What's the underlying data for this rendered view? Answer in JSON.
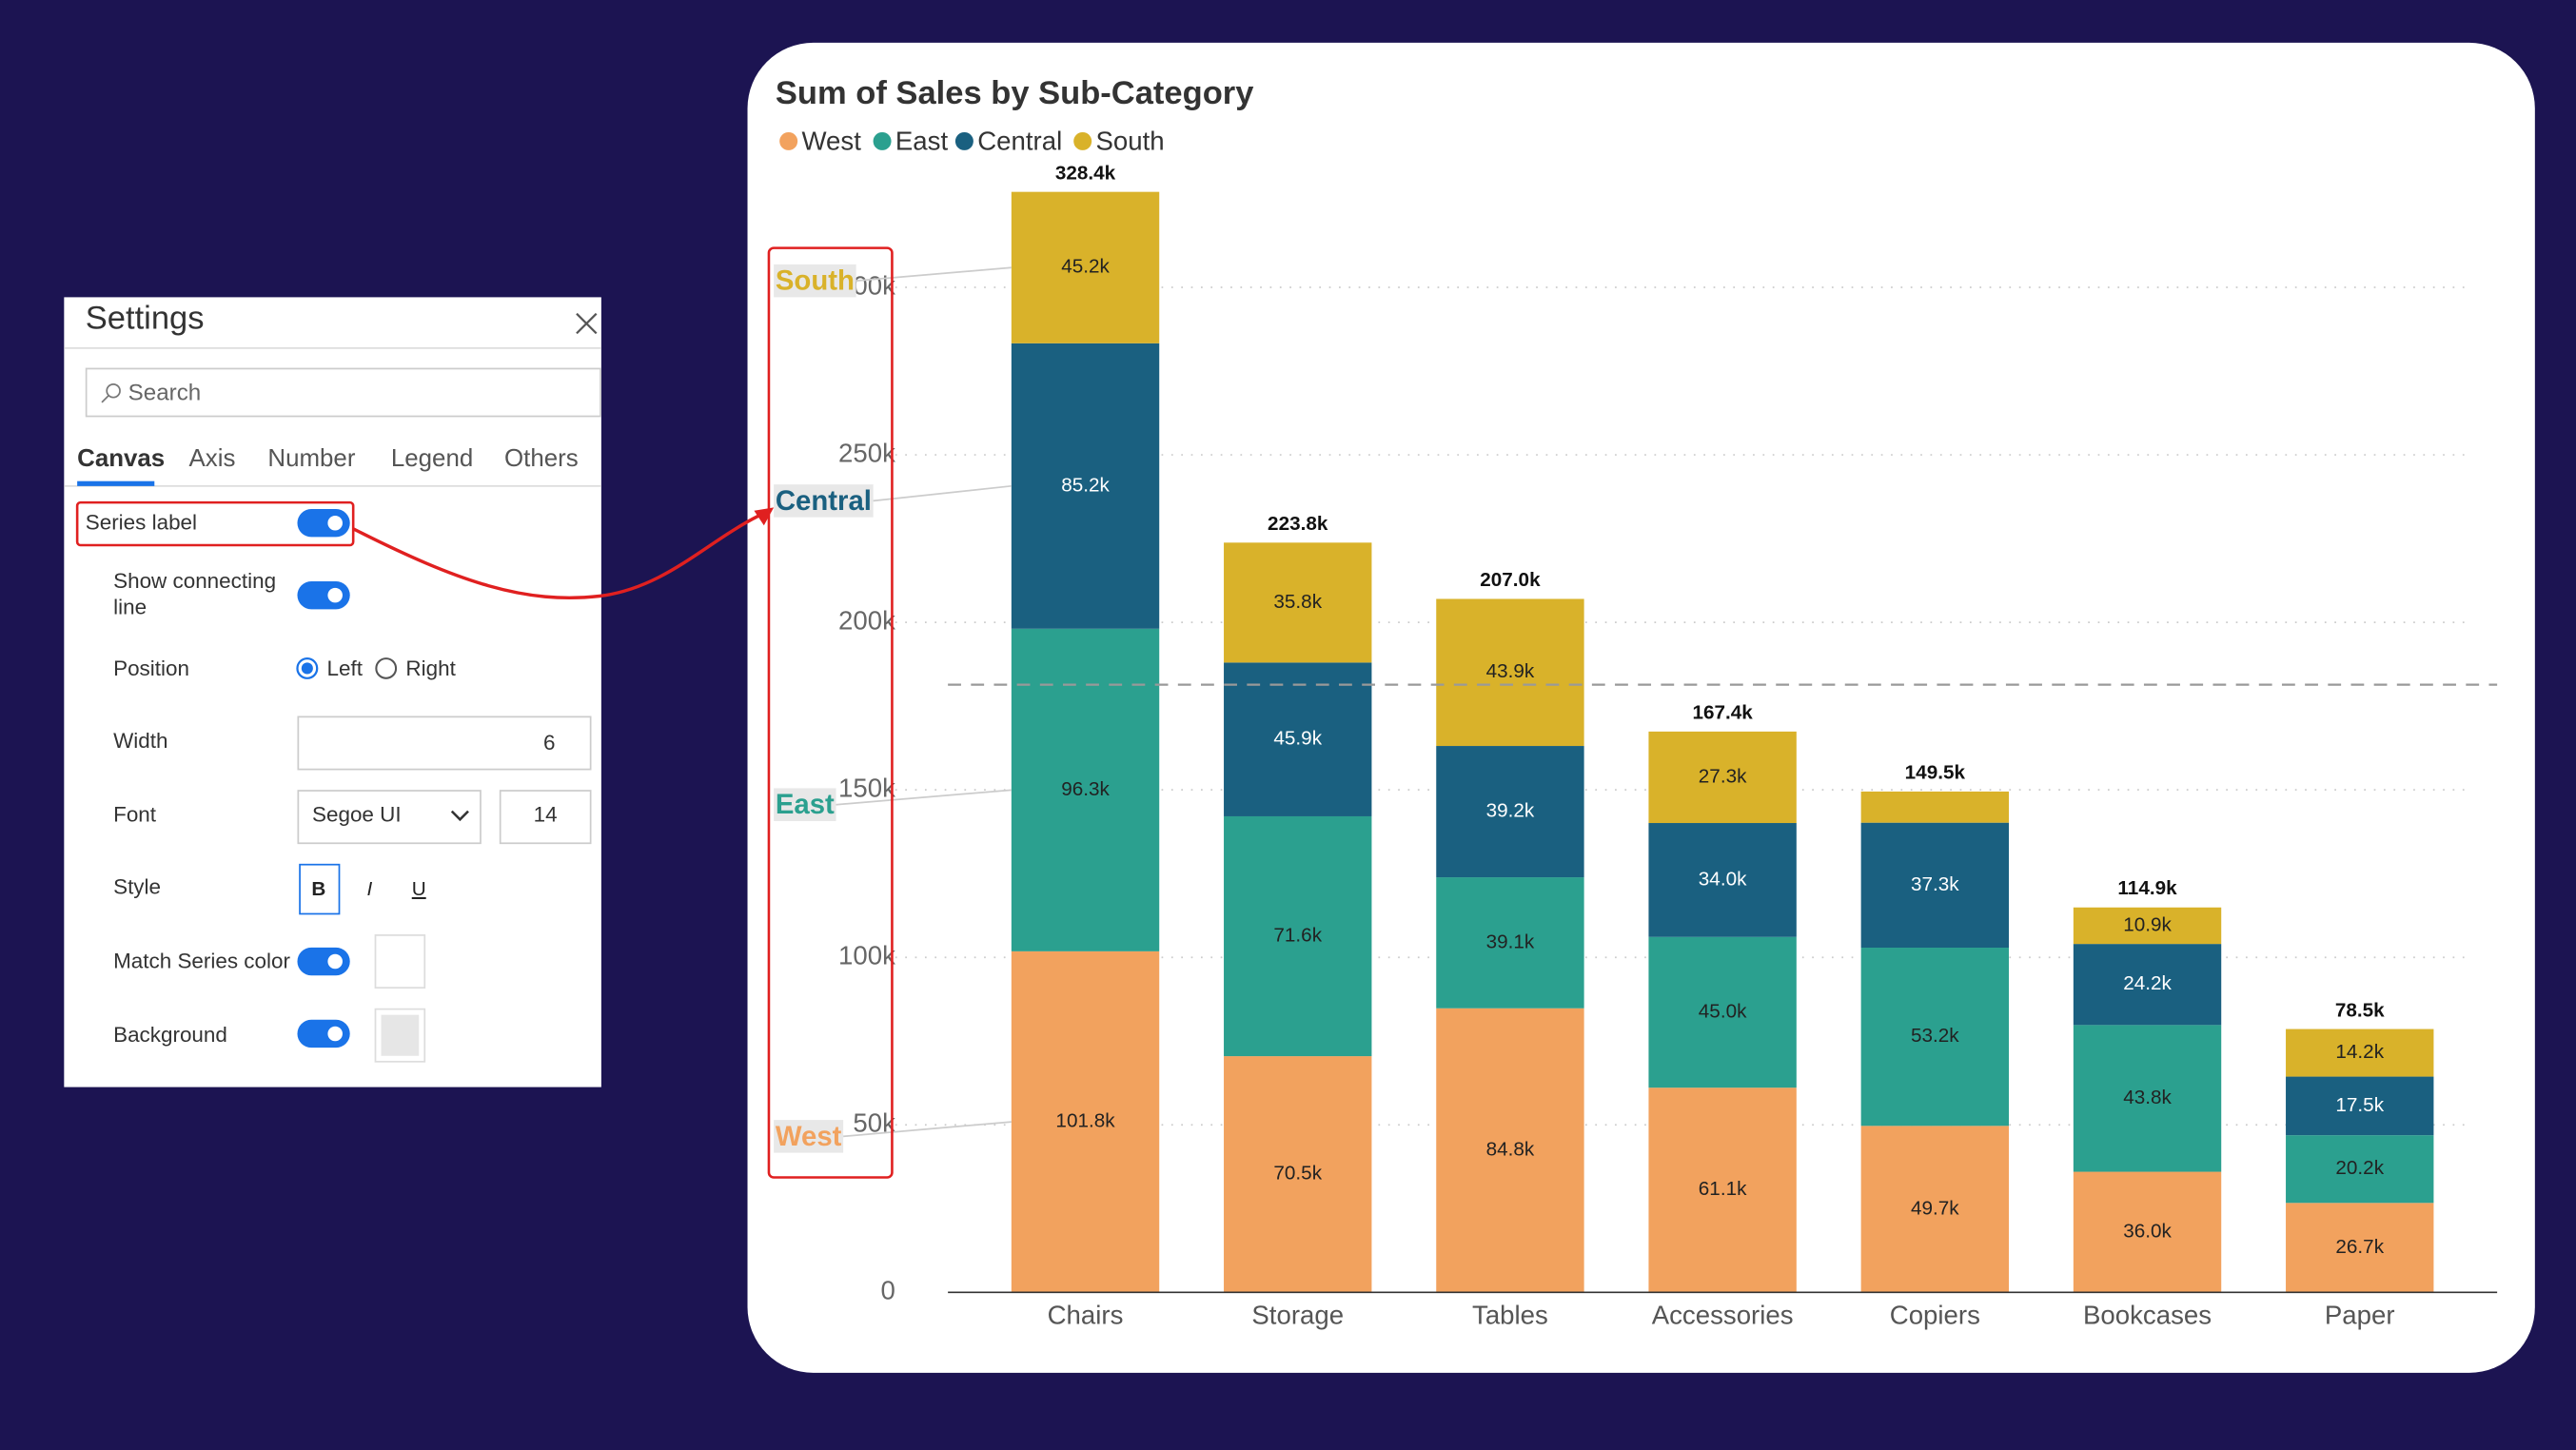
{
  "chart_data": {
    "type": "stacked_bar",
    "title": "Sum of Sales by Sub-Category",
    "legend": "top-left",
    "grid": true,
    "categories": [
      "Chairs",
      "Storage",
      "Tables",
      "Accessories",
      "Copiers",
      "Bookcases",
      "Paper"
    ],
    "series": [
      {
        "name": "West",
        "color": "#f2a25e",
        "values": [
          101800,
          70500,
          84800,
          61100,
          49700,
          36000,
          26700
        ],
        "value_labels": [
          "101.8k",
          "70.5k",
          "84.8k",
          "61.1k",
          "49.7k",
          "36.0k",
          "26.7k"
        ]
      },
      {
        "name": "East",
        "color": "#2ba08f",
        "values": [
          96300,
          71600,
          39100,
          45000,
          53200,
          43800,
          20200
        ],
        "value_labels": [
          "96.3k",
          "71.6k",
          "39.1k",
          "45.0k",
          "53.2k",
          "43.8k",
          "20.2k"
        ]
      },
      {
        "name": "Central",
        "color": "#1a6080",
        "values": [
          85200,
          45900,
          39200,
          34000,
          37300,
          24200,
          17500
        ],
        "value_labels": [
          "85.2k",
          "45.9k",
          "39.2k",
          "34.0k",
          "37.3k",
          "24.2k",
          "17.5k"
        ]
      },
      {
        "name": "South",
        "color": "#d9b22a",
        "values": [
          45200,
          35800,
          43900,
          27300,
          9300,
          10900,
          14200
        ],
        "value_labels": [
          "45.2k",
          "35.8k",
          "43.9k",
          "27.3k",
          null,
          "10.9k",
          "14.2k"
        ]
      }
    ],
    "totals": [
      328400,
      223800,
      207000,
      167400,
      149500,
      114900,
      78500
    ],
    "total_labels": [
      "328.4k",
      "223.8k",
      "207.0k",
      "167.4k",
      "149.5k",
      "114.9k",
      "78.5k"
    ],
    "average_line": 181400,
    "ylim": [
      0,
      337000
    ],
    "yticks": [
      0,
      {
        "value": 50000,
        "label": "50k"
      },
      {
        "value": 100000,
        "label": "100k"
      },
      {
        "value": 150000,
        "label": "150k"
      },
      {
        "value": 200000,
        "label": "200k"
      },
      {
        "value": 250000,
        "label": "250k"
      },
      {
        "value": 300000,
        "label": "300k"
      }
    ]
  },
  "settings": {
    "title": "Settings",
    "search_placeholder": "Search",
    "tabs": [
      "Canvas",
      "Axis",
      "Number",
      "Legend",
      "Others"
    ],
    "series_label": "Series label",
    "show_connecting_line": "Show connecting line",
    "position": {
      "label": "Position",
      "options": [
        "Left",
        "Right"
      ]
    },
    "width": {
      "label": "Width",
      "value": 6
    },
    "font": {
      "label": "Font",
      "family": "Segoe UI",
      "size": 14
    },
    "style": {
      "label": "Style",
      "options": [
        "B",
        "I",
        "U"
      ]
    },
    "match_series_color": "Match Series color",
    "background": "Background"
  }
}
